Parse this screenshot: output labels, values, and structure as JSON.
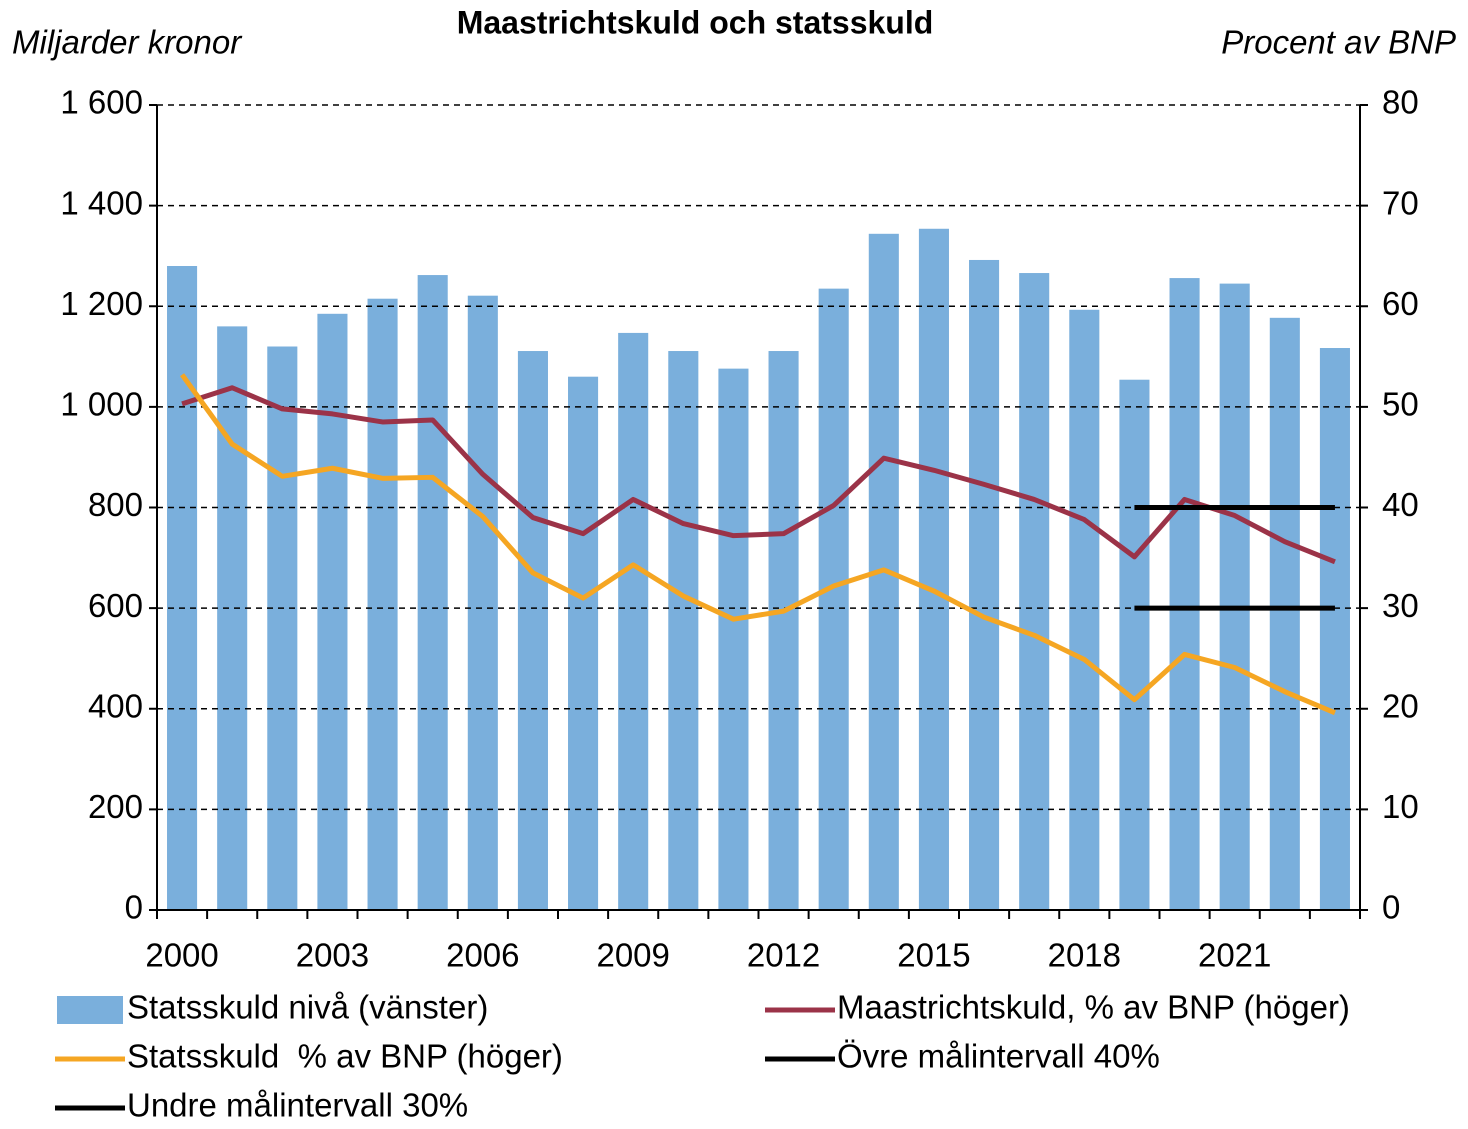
{
  "chart_data": {
    "type": "bar-line",
    "title": "Maastrichtskuld och statsskuld",
    "y_label": "Miljarder kronor",
    "y2_label": "Procent av BNP",
    "categories": [
      "2000",
      null,
      null,
      "2003",
      null,
      null,
      "2006",
      null,
      null,
      "2009",
      null,
      null,
      "2012",
      null,
      null,
      "2015",
      null,
      null,
      "2018",
      null,
      null,
      "2021",
      null,
      null
    ],
    "series": [
      {
        "name": "Statsskuld nivå (vänster)",
        "type": "bar",
        "color": "#7aafdc",
        "values": [
          1280,
          1160,
          1120,
          1185,
          1215,
          1262,
          1221,
          1111,
          1060,
          1147,
          1111,
          1076,
          1111,
          1235,
          1344,
          1354,
          1292,
          1266,
          1193,
          1054,
          1256,
          1245,
          1177,
          1117
        ]
      },
      {
        "name": "Maastrichtskuld, % av BNP (höger)",
        "type": "line",
        "axis": "y2",
        "color": "#9b3348",
        "values": [
          50.3,
          51.9,
          49.8,
          49.3,
          48.5,
          48.7,
          43.3,
          39.0,
          37.4,
          40.8,
          38.4,
          37.2,
          37.4,
          40.2,
          44.9,
          43.7,
          42.3,
          40.8,
          38.8,
          35.1,
          40.8,
          39.2,
          36.6,
          34.6
        ]
      },
      {
        "name": "Statsskuld  % av BNP (höger)",
        "type": "line",
        "axis": "y2",
        "color": "#f5a623",
        "values": [
          53.2,
          46.3,
          43.1,
          43.9,
          42.9,
          43.0,
          39.1,
          33.5,
          31.0,
          34.3,
          31.2,
          28.9,
          29.7,
          32.2,
          33.8,
          31.7,
          29.1,
          27.3,
          24.9,
          20.9,
          25.4,
          24.1,
          21.7,
          19.6
        ]
      },
      {
        "name": "Övre målintervall 40%",
        "type": "line",
        "axis": "y2",
        "color": "#000000",
        "values": [
          null,
          null,
          null,
          null,
          null,
          null,
          null,
          null,
          null,
          null,
          null,
          null,
          null,
          null,
          null,
          null,
          null,
          null,
          null,
          40,
          40,
          40,
          40,
          40
        ]
      },
      {
        "name": "Undre målintervall 30%",
        "type": "line",
        "axis": "y2",
        "color": "#000000",
        "values": [
          null,
          null,
          null,
          null,
          null,
          null,
          null,
          null,
          null,
          null,
          null,
          null,
          null,
          null,
          null,
          null,
          null,
          null,
          null,
          30,
          30,
          30,
          30,
          30
        ]
      }
    ],
    "ylim": [
      0,
      1600
    ],
    "yticks": [
      0,
      200,
      400,
      600,
      800,
      {
        "value": 1000,
        "label": "1 000"
      },
      {
        "value": 1200,
        "label": "1 200"
      },
      {
        "value": 1400,
        "label": "1 400"
      },
      {
        "value": 1600,
        "label": "1 600"
      }
    ],
    "y2lim": [
      0,
      80
    ],
    "y2ticks": [
      0,
      10,
      20,
      30,
      40,
      50,
      60,
      70,
      80
    ],
    "grid": true
  }
}
